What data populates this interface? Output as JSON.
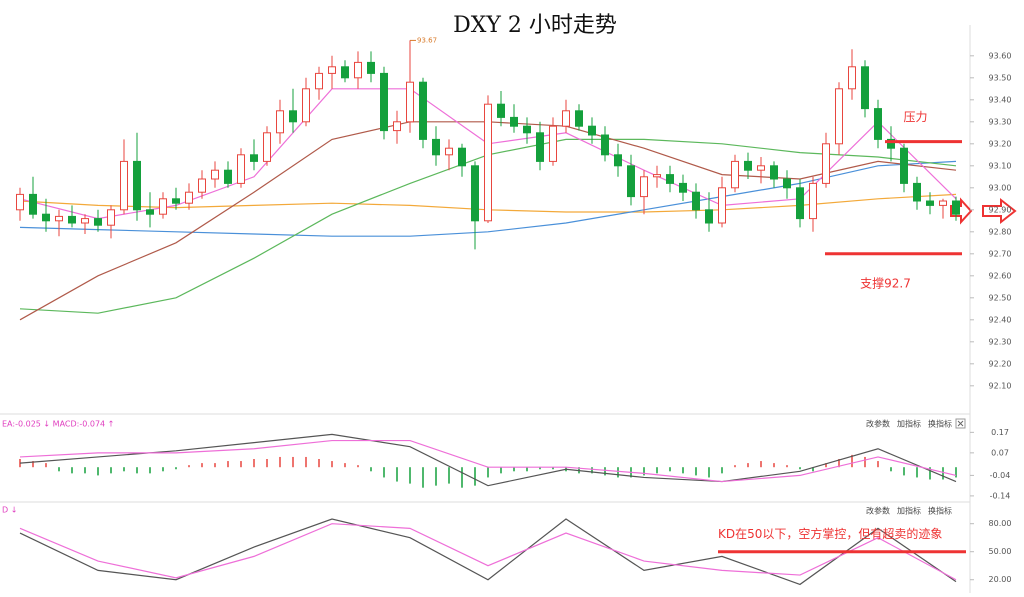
{
  "chart_data": [
    {
      "type": "candlestick",
      "title": "DXY 2 小时走势",
      "open": [
        92.9,
        92.97,
        92.88,
        92.85,
        92.87,
        92.84,
        92.86,
        92.83,
        92.9,
        93.12,
        92.9,
        92.88,
        92.95,
        92.93,
        92.98,
        93.04,
        93.08,
        93.02,
        93.15,
        93.12,
        93.25,
        93.35,
        93.3,
        93.45,
        93.52,
        93.55,
        93.5,
        93.57,
        93.52,
        93.26,
        93.3,
        93.48,
        93.22,
        93.15,
        93.18,
        93.1,
        92.85,
        93.38,
        93.32,
        93.28,
        93.25,
        93.12,
        93.28,
        93.35,
        93.28,
        93.24,
        93.15,
        93.1,
        92.96,
        93.05,
        93.06,
        93.02,
        92.98,
        92.9,
        92.84,
        93.0,
        93.12,
        93.08,
        93.1,
        93.04,
        93.0,
        92.86,
        93.02,
        93.2,
        93.45,
        93.55,
        93.36,
        93.22,
        93.18,
        93.02,
        92.94,
        92.92,
        92.94
      ],
      "high": [
        93.0,
        93.05,
        92.95,
        92.9,
        92.92,
        92.88,
        92.9,
        92.92,
        93.22,
        93.25,
        92.98,
        92.98,
        93.0,
        93.02,
        93.08,
        93.12,
        93.12,
        93.18,
        93.22,
        93.28,
        93.4,
        93.45,
        93.5,
        93.55,
        93.6,
        93.58,
        93.62,
        93.62,
        93.55,
        93.35,
        93.67,
        93.5,
        93.28,
        93.22,
        93.2,
        93.12,
        93.42,
        93.44,
        93.38,
        93.32,
        93.3,
        93.32,
        93.4,
        93.38,
        93.32,
        93.28,
        93.2,
        93.15,
        93.08,
        93.1,
        93.1,
        93.06,
        93.02,
        92.98,
        93.05,
        93.15,
        93.16,
        93.14,
        93.12,
        93.08,
        93.04,
        93.05,
        93.25,
        93.48,
        93.63,
        93.58,
        93.4,
        93.28,
        93.2,
        93.05,
        92.98,
        92.95,
        92.96
      ],
      "low": [
        92.85,
        92.86,
        92.8,
        92.78,
        92.82,
        92.79,
        92.8,
        92.77,
        92.88,
        92.85,
        92.82,
        92.86,
        92.9,
        92.9,
        92.95,
        93.0,
        93.0,
        93.0,
        93.08,
        93.1,
        93.2,
        93.25,
        93.28,
        93.4,
        93.45,
        93.48,
        93.45,
        93.48,
        93.22,
        93.2,
        93.25,
        93.18,
        93.1,
        93.08,
        93.05,
        92.72,
        92.84,
        93.28,
        93.25,
        93.2,
        93.08,
        93.1,
        93.25,
        93.26,
        93.2,
        93.12,
        93.05,
        92.92,
        92.88,
        93.0,
        92.98,
        92.94,
        92.86,
        92.8,
        92.82,
        92.98,
        93.04,
        93.02,
        93.0,
        92.95,
        92.82,
        92.8,
        93.0,
        93.15,
        93.4,
        93.32,
        93.18,
        93.12,
        92.98,
        92.9,
        92.88,
        92.86,
        92.85
      ],
      "close": [
        92.97,
        92.88,
        92.85,
        92.87,
        92.84,
        92.86,
        92.83,
        92.9,
        93.12,
        92.9,
        92.88,
        92.95,
        92.93,
        92.98,
        93.04,
        93.08,
        93.02,
        93.15,
        93.12,
        93.25,
        93.35,
        93.3,
        93.45,
        93.52,
        93.55,
        93.5,
        93.57,
        93.52,
        93.26,
        93.3,
        93.48,
        93.22,
        93.15,
        93.18,
        93.1,
        92.85,
        93.38,
        93.32,
        93.28,
        93.25,
        93.12,
        93.28,
        93.35,
        93.28,
        93.24,
        93.15,
        93.1,
        92.96,
        93.05,
        93.06,
        93.02,
        92.98,
        92.9,
        92.84,
        93.0,
        93.12,
        93.08,
        93.1,
        93.04,
        93.0,
        92.86,
        93.02,
        93.2,
        93.45,
        93.55,
        93.36,
        93.22,
        93.18,
        93.02,
        92.94,
        92.92,
        92.94,
        92.88
      ],
      "up_color": "#e8463f",
      "down_color": "#14a03c",
      "ylim": [
        91.99,
        93.74
      ],
      "yticks": [
        {
          "value": 93.6,
          "label": "93.60"
        },
        {
          "value": 93.5,
          "label": "93.50"
        },
        {
          "value": 93.4,
          "label": "93.40"
        },
        {
          "value": 93.3,
          "label": "93.30"
        },
        {
          "value": 93.2,
          "label": "93.20"
        },
        {
          "value": 93.1,
          "label": "93.10"
        },
        {
          "value": 93.0,
          "label": "93.00"
        },
        {
          "value": 92.9,
          "label": "92.90"
        },
        {
          "value": 92.8,
          "label": "92.80"
        },
        {
          "value": 92.7,
          "label": "92.70"
        },
        {
          "value": 92.6,
          "label": "92.60"
        },
        {
          "value": 92.5,
          "label": "92.50"
        },
        {
          "value": 92.4,
          "label": "92.40"
        },
        {
          "value": 92.3,
          "label": "92.30"
        },
        {
          "value": 92.2,
          "label": "92.20"
        },
        {
          "value": 92.1,
          "label": "92.10"
        }
      ],
      "high_label": 93.67,
      "lines": {
        "x": [
          0,
          6,
          12,
          18,
          24,
          30,
          36,
          42,
          48,
          54,
          60,
          66,
          72
        ],
        "series": [
          {
            "color": "#f3a93a",
            "values": [
              92.94,
              92.92,
              92.91,
              92.92,
              92.93,
              92.92,
              92.9,
              92.89,
              92.89,
              92.9,
              92.92,
              92.95,
              92.97
            ]
          },
          {
            "color": "#4a90d9",
            "values": [
              92.82,
              92.81,
              92.8,
              92.79,
              92.78,
              92.78,
              92.8,
              92.84,
              92.9,
              92.96,
              93.02,
              93.1,
              93.12
            ]
          },
          {
            "color": "#5cb85c",
            "values": [
              92.45,
              92.43,
              92.5,
              92.68,
              92.88,
              93.02,
              93.15,
              93.22,
              93.22,
              93.2,
              93.16,
              93.14,
              93.1
            ]
          },
          {
            "color": "#b05a4a",
            "values": [
              92.4,
              92.6,
              92.75,
              92.98,
              93.22,
              93.3,
              93.3,
              93.28,
              93.18,
              93.06,
              93.04,
              93.12,
              93.08
            ]
          },
          {
            "color": "#ee6fd8",
            "values": [
              92.95,
              92.86,
              92.92,
              93.05,
              93.45,
              93.45,
              93.2,
              93.25,
              93.08,
              92.92,
              92.95,
              93.3,
              92.95
            ]
          }
        ]
      },
      "annotations": [
        {
          "text": "压力",
          "value": 93.21
        },
        {
          "text": "支撑92.7",
          "value": 92.7
        }
      ]
    },
    {
      "type": "macd",
      "label": "EA:-0.025 ↓  MACD:-0.074 ↑",
      "buttons": [
        "改参数",
        "加指标",
        "换指标"
      ],
      "histogram": [
        0.04,
        0.03,
        0.02,
        -0.02,
        -0.03,
        -0.03,
        -0.04,
        -0.03,
        -0.02,
        -0.03,
        -0.03,
        -0.02,
        -0.01,
        0.01,
        0.02,
        0.02,
        0.03,
        0.03,
        0.04,
        0.04,
        0.05,
        0.05,
        0.05,
        0.04,
        0.03,
        0.02,
        0.01,
        -0.02,
        -0.05,
        -0.07,
        -0.08,
        -0.1,
        -0.09,
        -0.08,
        -0.1,
        -0.09,
        -0.05,
        -0.03,
        -0.02,
        -0.02,
        -0.01,
        -0.01,
        -0.02,
        -0.03,
        -0.03,
        -0.04,
        -0.05,
        -0.05,
        -0.04,
        -0.03,
        -0.02,
        -0.03,
        -0.04,
        -0.05,
        -0.03,
        0.01,
        0.02,
        0.03,
        0.02,
        0.01,
        -0.01,
        -0.02,
        0.02,
        0.04,
        0.06,
        0.05,
        0.03,
        -0.02,
        -0.04,
        -0.05,
        -0.06,
        -0.06,
        -0.05
      ],
      "up_color": "#e8463f",
      "down_color": "#14a03c",
      "x": [
        0,
        6,
        12,
        18,
        24,
        30,
        36,
        42,
        48,
        54,
        60,
        66,
        72
      ],
      "series": [
        {
          "color": "#555555",
          "values": [
            0.02,
            0.05,
            0.08,
            0.12,
            0.16,
            0.1,
            -0.09,
            -0.01,
            -0.05,
            -0.07,
            -0.02,
            0.09,
            -0.07
          ]
        },
        {
          "color": "#ee6fd8",
          "values": [
            0.05,
            0.07,
            0.07,
            0.09,
            0.13,
            0.13,
            0.0,
            0.0,
            -0.03,
            -0.07,
            -0.04,
            0.05,
            -0.04
          ]
        }
      ],
      "ylim": [
        -0.16,
        0.24
      ],
      "yticks": [
        0.17,
        0.07,
        -0.04,
        -0.14
      ]
    },
    {
      "type": "line",
      "label": "D ↓",
      "buttons": [
        "改参数",
        "加指标",
        "换指标"
      ],
      "x": [
        0,
        6,
        12,
        18,
        24,
        30,
        36,
        42,
        48,
        54,
        60,
        66,
        72
      ],
      "series": [
        {
          "color": "#555555",
          "values": [
            70,
            30,
            20,
            55,
            85,
            65,
            20,
            85,
            30,
            45,
            15,
            75,
            18
          ]
        },
        {
          "color": "#ee6fd8",
          "values": [
            75,
            40,
            22,
            45,
            80,
            75,
            35,
            70,
            40,
            30,
            25,
            65,
            20
          ]
        }
      ],
      "ylim": [
        9,
        100
      ],
      "yticks": [
        {
          "value": 80,
          "label": "80.00"
        },
        {
          "value": 50,
          "label": "50.00"
        },
        {
          "value": 20,
          "label": "20.00"
        }
      ],
      "annotation": {
        "text": "KD在50以下，空方掌控，但有超卖的迹象",
        "value": 50
      }
    }
  ]
}
